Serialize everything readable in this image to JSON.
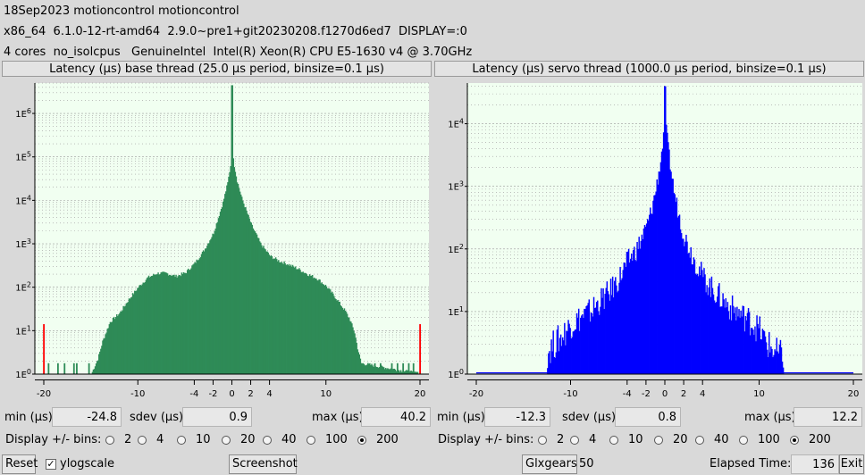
{
  "header": {
    "line1": "18Sep2023 motioncontrol motioncontrol",
    "line2": "x86_64  6.1.0-12-rt-amd64  2.9.0~pre1+git20230208.f1270d6ed7  DISPLAY=:0",
    "line3": "4 cores  no_isolcpus   GenuineIntel  Intel(R) Xeon(R) CPU E5-1630 v4 @ 3.70GHz"
  },
  "colors": {
    "base": "#2e8b57",
    "servo": "#0000ff",
    "plot_bg": "#f1fff1",
    "marker": "#ff0000"
  },
  "panels": [
    {
      "id": "base",
      "title": "Latency (µs) base thread (25.0 µs period, binsize=0.1 µs)",
      "min_label": "min (µs)",
      "min_value": "-24.8",
      "sdev_label": "sdev (µs)",
      "sdev_value": "0.9",
      "max_label": "max (µs)",
      "max_value": "40.2",
      "selected_bins": 200
    },
    {
      "id": "servo",
      "title": "Latency (µs) servo thread (1000.0 µs period, binsize=0.1 µs)",
      "min_label": "min (µs)",
      "min_value": "-12.3",
      "sdev_label": "sdev (µs)",
      "sdev_value": "0.8",
      "max_label": "max (µs)",
      "max_value": "12.2",
      "selected_bins": 200
    }
  ],
  "bins_label": "Display +/- bins:",
  "bins_options": [
    "2",
    "4",
    "10",
    "20",
    "40",
    "100",
    "200"
  ],
  "bottom": {
    "reset_label": "Reset",
    "ylogscale_label": "ylogscale",
    "ylogscale_checked": true,
    "screenshot_label": "Screenshot",
    "glxgears_label": "Glxgears",
    "glxgears_value": "50",
    "elapsed_label": "Elapsed Time:",
    "elapsed_value": "136",
    "exit_label": "Exit"
  },
  "chart_data": [
    {
      "type": "bar",
      "title": "Latency (µs) base thread (25.0 µs period, binsize=0.1 µs)",
      "xlabel": "",
      "ylabel": "",
      "x_ticks": [
        -20,
        -10,
        -4,
        -2,
        0,
        2,
        4,
        10,
        20
      ],
      "xlim": [
        -20,
        20
      ],
      "y_log": true,
      "y_ticks": [
        "1E0",
        "1E1",
        "1E2",
        "1E3",
        "1E4",
        "1E5",
        "1E6"
      ],
      "ylim_decades": [
        0,
        6.7
      ],
      "profile_x": [
        -20,
        -15,
        -14.3,
        -13.8,
        -13,
        -12,
        -11,
        -10,
        -9,
        -8,
        -7,
        -6,
        -5,
        -4,
        -3,
        -2,
        -1.5,
        -1,
        -0.5,
        -0.2,
        0,
        0.2,
        0.5,
        1,
        1.5,
        2,
        3,
        4,
        5,
        6,
        7,
        8,
        9,
        10,
        11,
        12,
        12.5,
        13,
        13.3,
        13.7,
        20
      ],
      "profile_log10": [
        0,
        0,
        0.35,
        0.75,
        1.2,
        1.4,
        1.72,
        2.0,
        2.22,
        2.32,
        2.32,
        2.25,
        2.33,
        2.55,
        2.85,
        3.25,
        3.6,
        3.95,
        4.4,
        4.8,
        5.2,
        4.8,
        4.45,
        4.05,
        3.75,
        3.45,
        3.0,
        2.72,
        2.6,
        2.52,
        2.42,
        2.3,
        2.2,
        2.02,
        1.75,
        1.45,
        1.25,
        0.95,
        0.6,
        0.25,
        0
      ],
      "spike_x": 0,
      "spike_log10": 6.65,
      "outliers": [
        [
          -20,
          1.15
        ],
        [
          -19.5,
          0.25
        ],
        [
          -18.5,
          0.25
        ],
        [
          -17.8,
          0.25
        ],
        [
          -16.8,
          0.25
        ],
        [
          -16.5,
          0.25
        ],
        [
          -15.2,
          0.25
        ],
        [
          15.2,
          0.25
        ],
        [
          15.8,
          0.25
        ],
        [
          17,
          0.25
        ],
        [
          17.6,
          0.25
        ],
        [
          18.2,
          0.25
        ],
        [
          18.8,
          0.25
        ],
        [
          19.3,
          0.25
        ],
        [
          20,
          1.15
        ]
      ]
    },
    {
      "type": "bar",
      "title": "Latency (µs) servo thread (1000.0 µs period, binsize=0.1 µs)",
      "xlabel": "",
      "ylabel": "",
      "x_ticks": [
        -20,
        -10,
        -4,
        -2,
        0,
        2,
        4,
        10,
        20
      ],
      "xlim": [
        -20,
        20
      ],
      "y_log": true,
      "y_ticks": [
        "1E0",
        "1E1",
        "1E2",
        "1E3",
        "1E4"
      ],
      "ylim_decades": [
        0,
        4.65
      ],
      "profile_x": [
        -12.5,
        -12,
        -11,
        -10,
        -9,
        -8,
        -7,
        -6,
        -5,
        -4,
        -3,
        -2,
        -1.5,
        -1,
        -0.5,
        0,
        0.5,
        1,
        1.5,
        2,
        3,
        4,
        5,
        6,
        7,
        8,
        9,
        10,
        10.5,
        11,
        12,
        12.5
      ],
      "profile_log10": [
        0.35,
        0.45,
        0.6,
        0.8,
        0.9,
        1.0,
        1.15,
        1.3,
        1.5,
        1.8,
        2.0,
        2.35,
        2.6,
        2.95,
        3.4,
        4.05,
        3.35,
        2.85,
        2.5,
        2.2,
        1.85,
        1.55,
        1.35,
        1.2,
        1.05,
        0.95,
        0.85,
        0.7,
        0.55,
        0.45,
        0.3,
        0.3
      ],
      "spike_x": 0,
      "spike_log10": 4.6,
      "outliers": [
        [
          -12.3,
          0.3
        ],
        [
          12.2,
          0.3
        ]
      ]
    }
  ]
}
